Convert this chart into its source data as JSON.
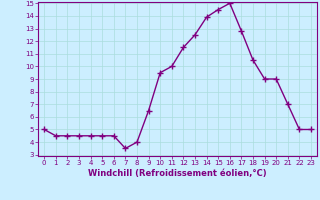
{
  "x": [
    0,
    1,
    2,
    3,
    4,
    5,
    6,
    7,
    8,
    9,
    10,
    11,
    12,
    13,
    14,
    15,
    16,
    17,
    18,
    19,
    20,
    21,
    22,
    23
  ],
  "y": [
    5,
    4.5,
    4.5,
    4.5,
    4.5,
    4.5,
    4.5,
    3.5,
    4,
    6.5,
    9.5,
    10,
    11.5,
    12.5,
    13.9,
    14.5,
    15,
    12.8,
    10.5,
    9,
    9,
    7,
    5,
    5
  ],
  "line_color": "#800080",
  "marker": "+",
  "marker_color": "#800080",
  "bg_color": "#cceeff",
  "grid_color": "#aadddd",
  "xlabel": "Windchill (Refroidissement éolien,°C)",
  "tick_color": "#800080",
  "ylim": [
    3,
    15
  ],
  "xlim": [
    -0.5,
    23.5
  ],
  "yticks": [
    3,
    4,
    5,
    6,
    7,
    8,
    9,
    10,
    11,
    12,
    13,
    14,
    15
  ],
  "xticks": [
    0,
    1,
    2,
    3,
    4,
    5,
    6,
    7,
    8,
    9,
    10,
    11,
    12,
    13,
    14,
    15,
    16,
    17,
    18,
    19,
    20,
    21,
    22,
    23
  ],
  "linewidth": 1.0,
  "markersize": 4,
  "tick_fontsize": 5.0,
  "xlabel_fontsize": 6.0
}
